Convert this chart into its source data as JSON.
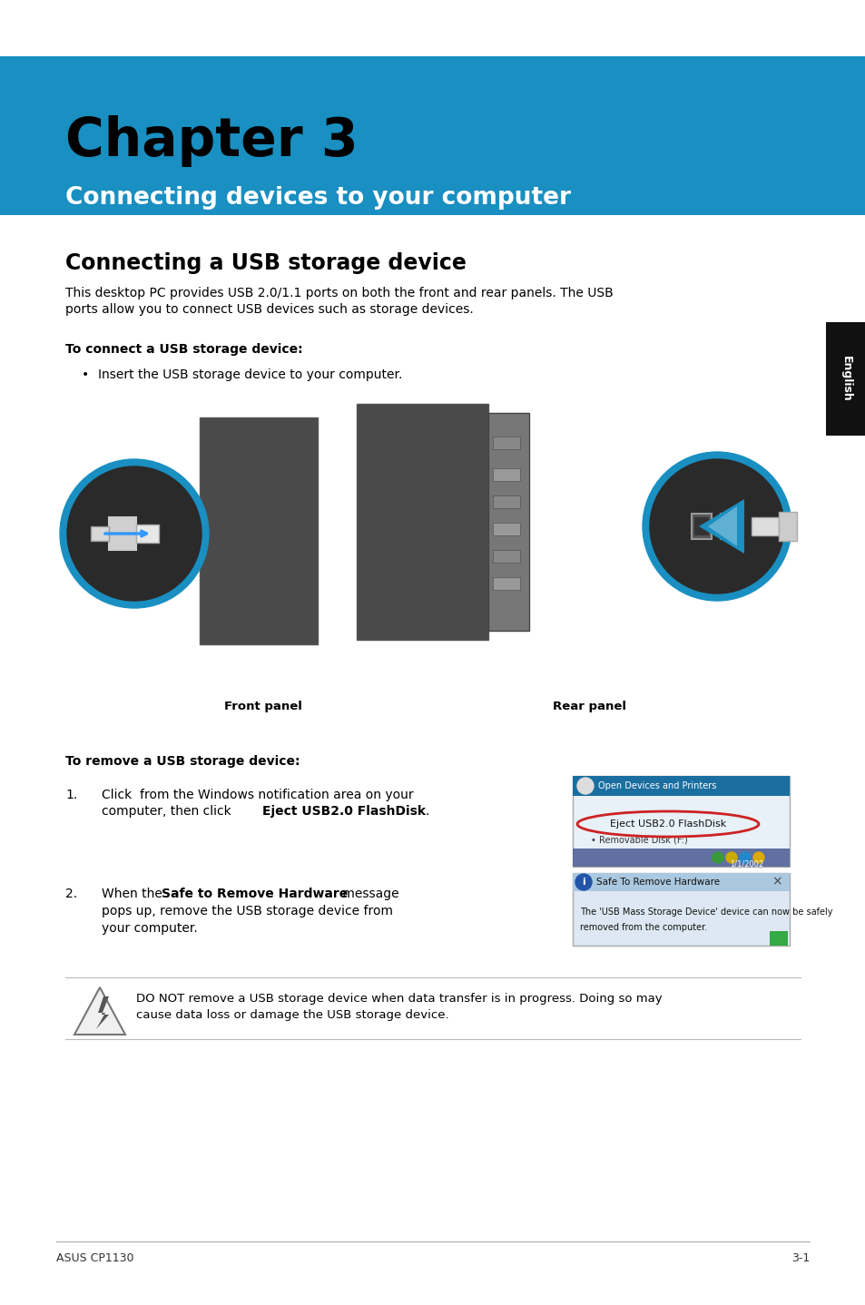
{
  "page_width": 9.54,
  "page_height": 14.38,
  "bg_color": "#ffffff",
  "header_bg_color": "#1a8fc1",
  "chapter_title": "Chapter 3",
  "chapter_title_color": "#000000",
  "chapter_title_fontsize": 42,
  "subtitle": "Connecting devices to your computer",
  "subtitle_color": "#ffffff",
  "subtitle_fontsize": 19,
  "section_title": "Connecting a USB storage device",
  "section_title_fontsize": 17,
  "body_text_intro_line1": "This desktop PC provides USB 2.0/1.1 ports on both the front and rear panels. The USB",
  "body_text_intro_line2": "ports allow you to connect USB devices such as storage devices.",
  "body_text_fontsize": 10,
  "connect_heading": "To connect a USB storage device:",
  "connect_bullet": "Insert the USB storage device to your computer.",
  "front_panel_label": "Front panel",
  "rear_panel_label": "Rear panel",
  "remove_heading": "To remove a USB storage device:",
  "remove_step1_num": "1.",
  "remove_step1_line1": "Click  from the Windows notification area on your",
  "remove_step1_line2_plain": "computer, then click ",
  "remove_step1_line2_bold": "Eject USB2.0 FlashDisk",
  "remove_step1_line2_end": ".",
  "remove_step2_num": "2.",
  "remove_step2_line1_plain1": "When the ",
  "remove_step2_line1_bold": "Safe to Remove Hardware",
  "remove_step2_line1_plain2": " message",
  "remove_step2_line2": "pops up, remove the USB storage device from",
  "remove_step2_line3": "your computer.",
  "warning_text_line1": "DO NOT remove a USB storage device when data transfer is in progress. Doing so may",
  "warning_text_line2": "cause data loss or damage the USB storage device.",
  "footer_left": "ASUS CP1130",
  "footer_right": "3-1",
  "footer_fontsize": 9,
  "english_tab_color": "#111111",
  "english_text": "English",
  "english_fontsize": 9
}
